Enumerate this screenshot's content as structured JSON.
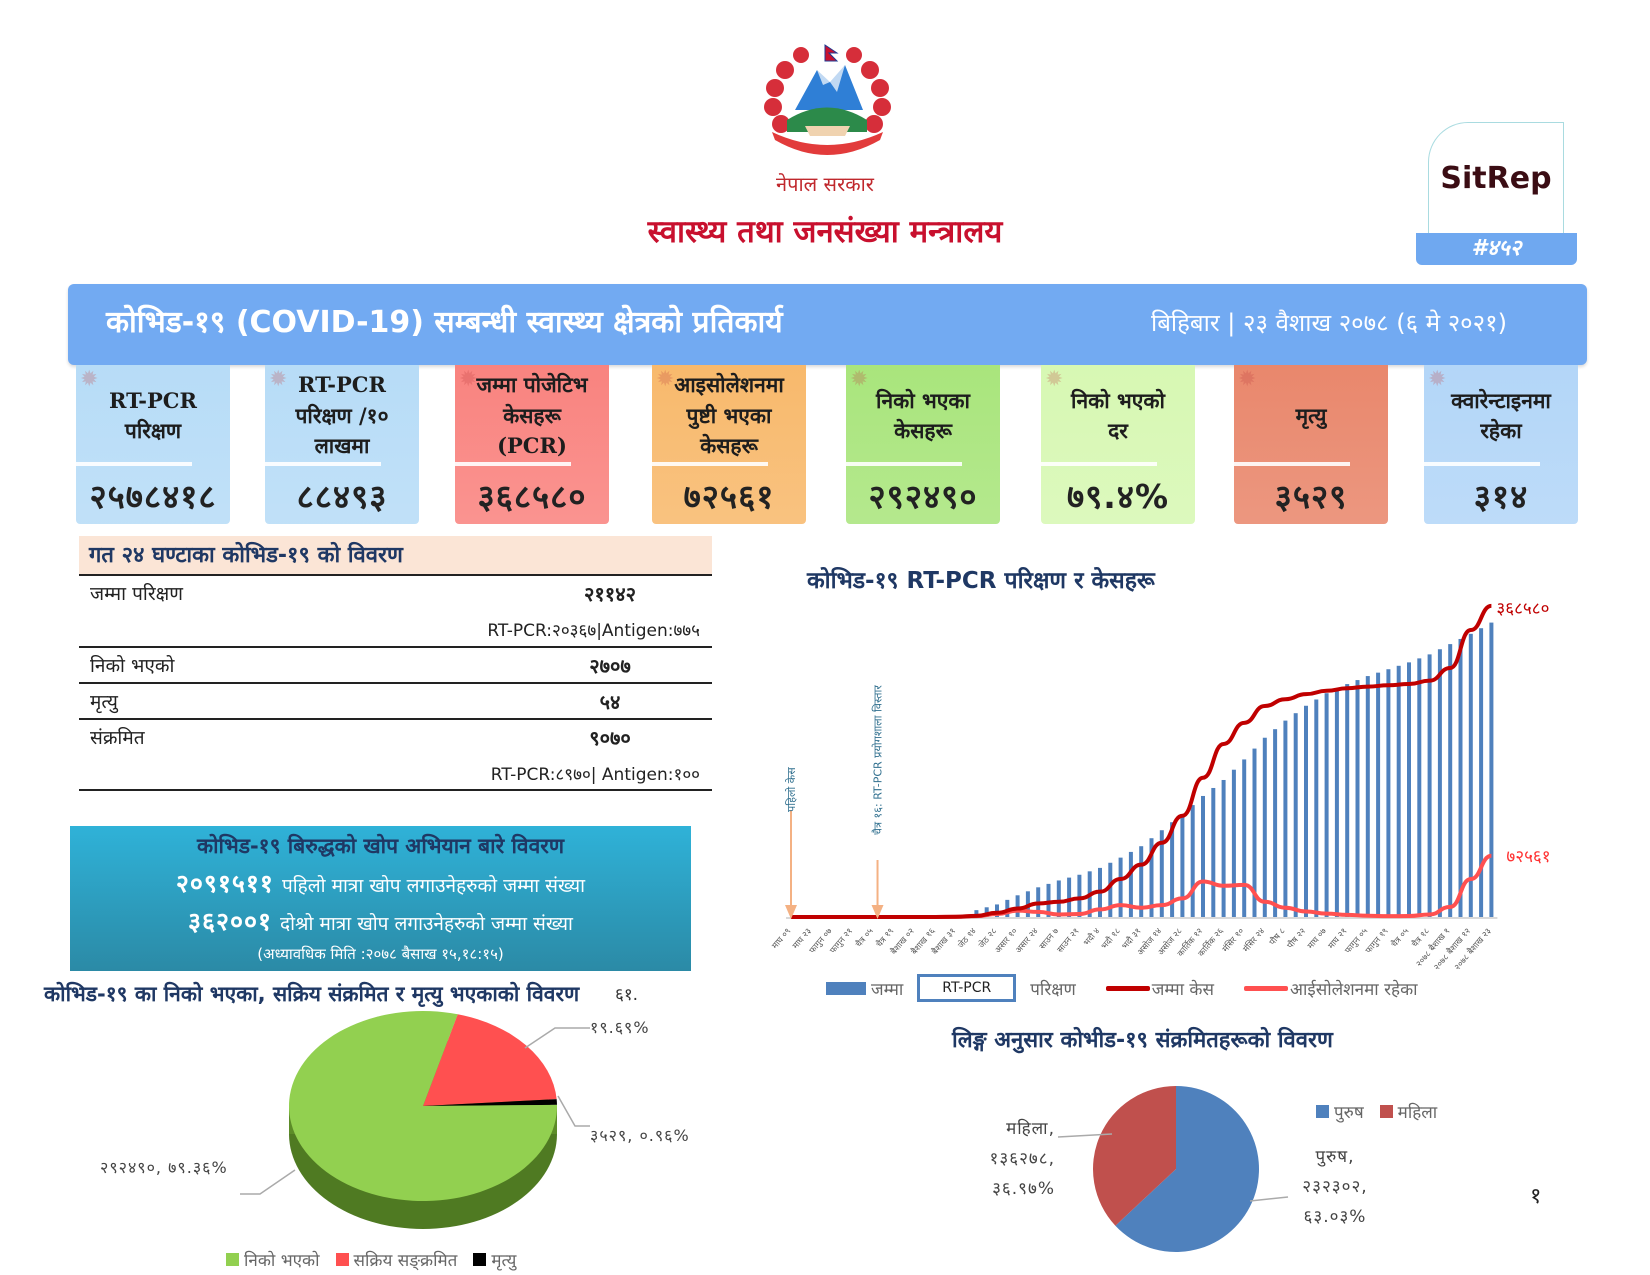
{
  "header": {
    "emblem_text": "नेपाल सरकार emblem",
    "government": "नेपाल सरकार",
    "ministry": "स्वास्थ्य तथा जनसंख्या मन्त्रालय",
    "sitrep_label": "SitRep",
    "sitrep_number": "#४५२"
  },
  "banner": {
    "title": "कोभिड-१९ (COVID-19) सम्बन्धी स्वास्थ्य क्षेत्रको प्रतिकार्य",
    "date": "बिहिबार | २३ वैशाख २०७८ (६ मे २०२१)"
  },
  "cards": [
    {
      "title": "RT-PCR\nपरिक्षण",
      "value": "२५७८४१८",
      "color": "#b7dcf7"
    },
    {
      "title": "RT-PCR\nपरिक्षण /१०\nलाखमा",
      "value": "८८४९३",
      "color": "#b7dcf7"
    },
    {
      "title": "जम्मा पोजेटिभ\nकेसहरू\n(PCR)",
      "value": "३६८५८०",
      "color": "#f9837f"
    },
    {
      "title": "आइसोलेशनमा\nपुष्टी भएका\nकेसहरू",
      "value": "७२५६१",
      "color": "#f8b96c"
    },
    {
      "title": "निको भएका\nकेसहरू",
      "value": "२९२४९०",
      "color": "#a9e57c"
    },
    {
      "title": "निको भएको\nदर",
      "value": "७९.४%",
      "color": "#d7f8b3"
    },
    {
      "title": "मृत्यु",
      "value": "३५२९",
      "color": "#e9876c"
    },
    {
      "title": "क्वारेन्टाइनमा\nरहेका",
      "value": "३१४",
      "color": "#b3d6f8"
    }
  ],
  "last24h": {
    "title": "गत २४ घण्टाका कोभिड-१९ को विवरण",
    "rows": [
      {
        "label": "जम्मा परिक्षण",
        "value": "२११४२",
        "sub": "RT-PCR:२०३६७|Antigen:७७५"
      },
      {
        "label": "निको भएको",
        "value": "२७०७"
      },
      {
        "label": "मृत्यु",
        "value": "५४"
      },
      {
        "label": "संक्रमित",
        "value": "९०७०",
        "sub": "RT-PCR:८९७०| Antigen:१००"
      }
    ]
  },
  "vaccine": {
    "title": "कोभिड-१९ बिरुद्धको खोप अभियान बारे विवरण",
    "first_dose_count": "२०९१५११",
    "first_dose_label": "पहिलो मात्रा खोप लगाउनेहरुको जम्मा संख्या",
    "second_dose_count": "३६२००१",
    "second_dose_label": "दोश्रो मात्रा खोप लगाउनेहरुको जम्मा संख्या",
    "updated": "(अध्यावधिक मिति :२०७८ बैसाख १५,१८:१५)"
  },
  "page_number": "१",
  "chart_data": [
    {
      "type": "bar+line",
      "title": "कोभिड-१९ RT-PCR परिक्षण र केसहरू",
      "categories": [
        "माघ ०९",
        "माघ २३",
        "फागुन ०७",
        "फागुन २१",
        "चैत्र ०५",
        "चैत्र १९",
        "बैशाख ०२",
        "बैशाख १६",
        "बैशाख ३१",
        "जेठ १४",
        "जेठ २८",
        "असार १०",
        "असार २४",
        "साउन ७",
        "साउन २१",
        "भदौ ४",
        "भदौ १८",
        "भदौ ३१",
        "असोज १४",
        "असोज २८",
        "कार्तिक १२",
        "कार्तिक २६",
        "मंसिर १०",
        "मंसिर २४",
        "पौष ८",
        "पौष २२",
        "माघ ०७",
        "माघ २१",
        "फागुन ०५",
        "फागुन १९",
        "चैत्र ०५",
        "चैत्र १८",
        "२०७८ बैशाख १",
        "२०७८ बैशाख १२",
        "२०७८ बैशाख २३"
      ],
      "series": [
        {
          "name": "जम्मा RT-PCR परिक्षण",
          "type": "bar",
          "axis": "secondary",
          "color": "#4f81bd",
          "values": [
            0,
            0,
            0,
            0,
            0,
            0,
            0,
            0,
            0,
            60000,
            110000,
            190000,
            260000,
            320000,
            370000,
            430000,
            520000,
            620000,
            760000,
            900000,
            1060000,
            1200000,
            1380000,
            1570000,
            1720000,
            1850000,
            1960000,
            2040000,
            2110000,
            2170000,
            2230000,
            2300000,
            2390000,
            2480000,
            2578418
          ]
        },
        {
          "name": "जम्मा केस",
          "type": "line",
          "color": "#c00000",
          "values": [
            1,
            1,
            1,
            1,
            2,
            9,
            30,
            70,
            250,
            1400,
            5000,
            10000,
            16000,
            18000,
            22000,
            30000,
            45000,
            62000,
            88000,
            120000,
            165000,
            205000,
            230000,
            250000,
            258000,
            264000,
            268000,
            271000,
            273000,
            274500,
            276000,
            280000,
            295000,
            340000,
            368580
          ]
        },
        {
          "name": "आईसोलेशनमा रहेका",
          "type": "line",
          "color": "#ff5050",
          "values": [
            0,
            0,
            0,
            1,
            2,
            8,
            28,
            60,
            210,
            1000,
            3500,
            7500,
            6000,
            3000,
            3500,
            9000,
            14000,
            11000,
            14000,
            22000,
            42000,
            37000,
            38000,
            18000,
            11000,
            6500,
            4000,
            2500,
            1500,
            1000,
            1200,
            3000,
            12000,
            45000,
            72561
          ]
        }
      ],
      "ylim_primary": [
        0,
        372000
      ],
      "ylim_secondary": [
        0,
        2750000
      ],
      "end_labels": {
        "total_cases": "३६८५८०",
        "isolation": "७२५६१"
      },
      "annotations": [
        {
          "category": "माघ ०९",
          "text": "पहिलो केस"
        },
        {
          "category": "चैत्र १६",
          "text": "चैत्र १६: RT-PCR प्रयोगशाला विस्तार"
        }
      ],
      "legend": {
        "position": "bottom",
        "tests_prefix": "जम्मा",
        "tests_box": "RT-PCR",
        "tests_suffix": "परिक्षण",
        "cases": "जम्मा केस",
        "isolation": "आईसोलेशनमा रहेका"
      },
      "grid": false
    },
    {
      "type": "pie",
      "style": "3d",
      "title": "कोभिड-१९ का निको भएका, सक्रिय संक्रमित र मृत्यु भएकाको विवरण",
      "title_overlap_text": "६१.",
      "slices": [
        {
          "name": "निको भएको",
          "value": 292490,
          "percent": 79.36,
          "label": "२९२४९०, ७९.३६%",
          "color": "#92d050"
        },
        {
          "name": "सक्रिय सङ्क्रमित",
          "value": 72561,
          "percent": 19.69,
          "label": "१९.६९%",
          "color": "#ff5050"
        },
        {
          "name": "मृत्यु",
          "value": 3529,
          "percent": 0.96,
          "label": "३५२९, ०.९६%",
          "color": "#000000"
        }
      ],
      "legend": "bottom"
    },
    {
      "type": "pie",
      "title": "लिङ्ग अनुसार कोभीड-१९ संक्रमितहरूको विवरण",
      "slices": [
        {
          "name": "पुरुष",
          "value": 232302,
          "percent": 63.03,
          "label_name": "पुरुष,",
          "label_value": "२३२३०२,",
          "label_percent": "६३.०३%",
          "color": "#4f81bd"
        },
        {
          "name": "महिला",
          "value": 136278,
          "percent": 36.97,
          "label_name": "महिला,",
          "label_value": "१३६२७८,",
          "label_percent": "३६.९७%",
          "color": "#c0504d"
        }
      ],
      "legend": "top-right"
    }
  ]
}
